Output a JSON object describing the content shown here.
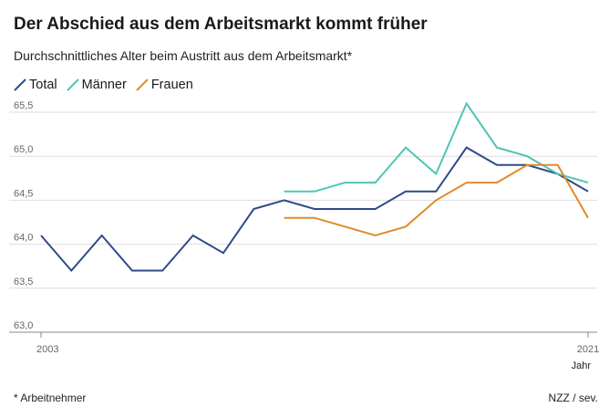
{
  "title": "Der Abschied aus dem Arbeitsmarkt kommt früher",
  "subtitle": "Durchschnittliches Alter beim Austritt aus dem Arbeitsmarkt*",
  "footnote": "* Arbeitnehmer",
  "source": "NZZ / sev.",
  "colors": {
    "total": "#2f4a8a",
    "maenner": "#4fc4b4",
    "frauen": "#e08b2a",
    "grid": "#dddddd",
    "axis": "#888888"
  },
  "chart_data": {
    "type": "line",
    "title": "Der Abschied aus dem Arbeitsmarkt kommt früher",
    "subtitle": "Durchschnittliches Alter beim Austritt aus dem Arbeitsmarkt*",
    "xlabel": "Jahr",
    "ylabel": "",
    "x": [
      2003,
      2004,
      2005,
      2006,
      2007,
      2008,
      2009,
      2010,
      2011,
      2012,
      2013,
      2014,
      2015,
      2016,
      2017,
      2018,
      2019,
      2020,
      2021
    ],
    "x_tick_labels": [
      "2003",
      "2021"
    ],
    "ylim": [
      63.0,
      65.5
    ],
    "y_ticks": [
      63.0,
      63.5,
      64.0,
      64.5,
      65.0,
      65.5
    ],
    "y_tick_labels": [
      "63,0",
      "63,5",
      "64,0",
      "64,5",
      "65,0",
      "65,5"
    ],
    "grid": true,
    "legend_position": "top-left",
    "series": [
      {
        "name": "Total",
        "key": "total",
        "values": [
          64.1,
          63.7,
          64.1,
          63.7,
          63.7,
          64.1,
          63.9,
          64.4,
          64.5,
          64.4,
          64.4,
          64.4,
          64.6,
          64.6,
          65.1,
          64.9,
          64.9,
          64.8,
          64.6
        ]
      },
      {
        "name": "Männer",
        "key": "maenner",
        "values": [
          null,
          null,
          null,
          null,
          null,
          null,
          null,
          null,
          64.6,
          64.6,
          64.7,
          64.7,
          65.1,
          64.8,
          65.6,
          65.1,
          65.0,
          64.8,
          64.7
        ]
      },
      {
        "name": "Frauen",
        "key": "frauen",
        "values": [
          null,
          null,
          null,
          null,
          null,
          null,
          null,
          null,
          64.3,
          64.3,
          64.2,
          64.1,
          64.2,
          64.5,
          64.7,
          64.7,
          64.9,
          64.9,
          64.3
        ]
      }
    ]
  }
}
